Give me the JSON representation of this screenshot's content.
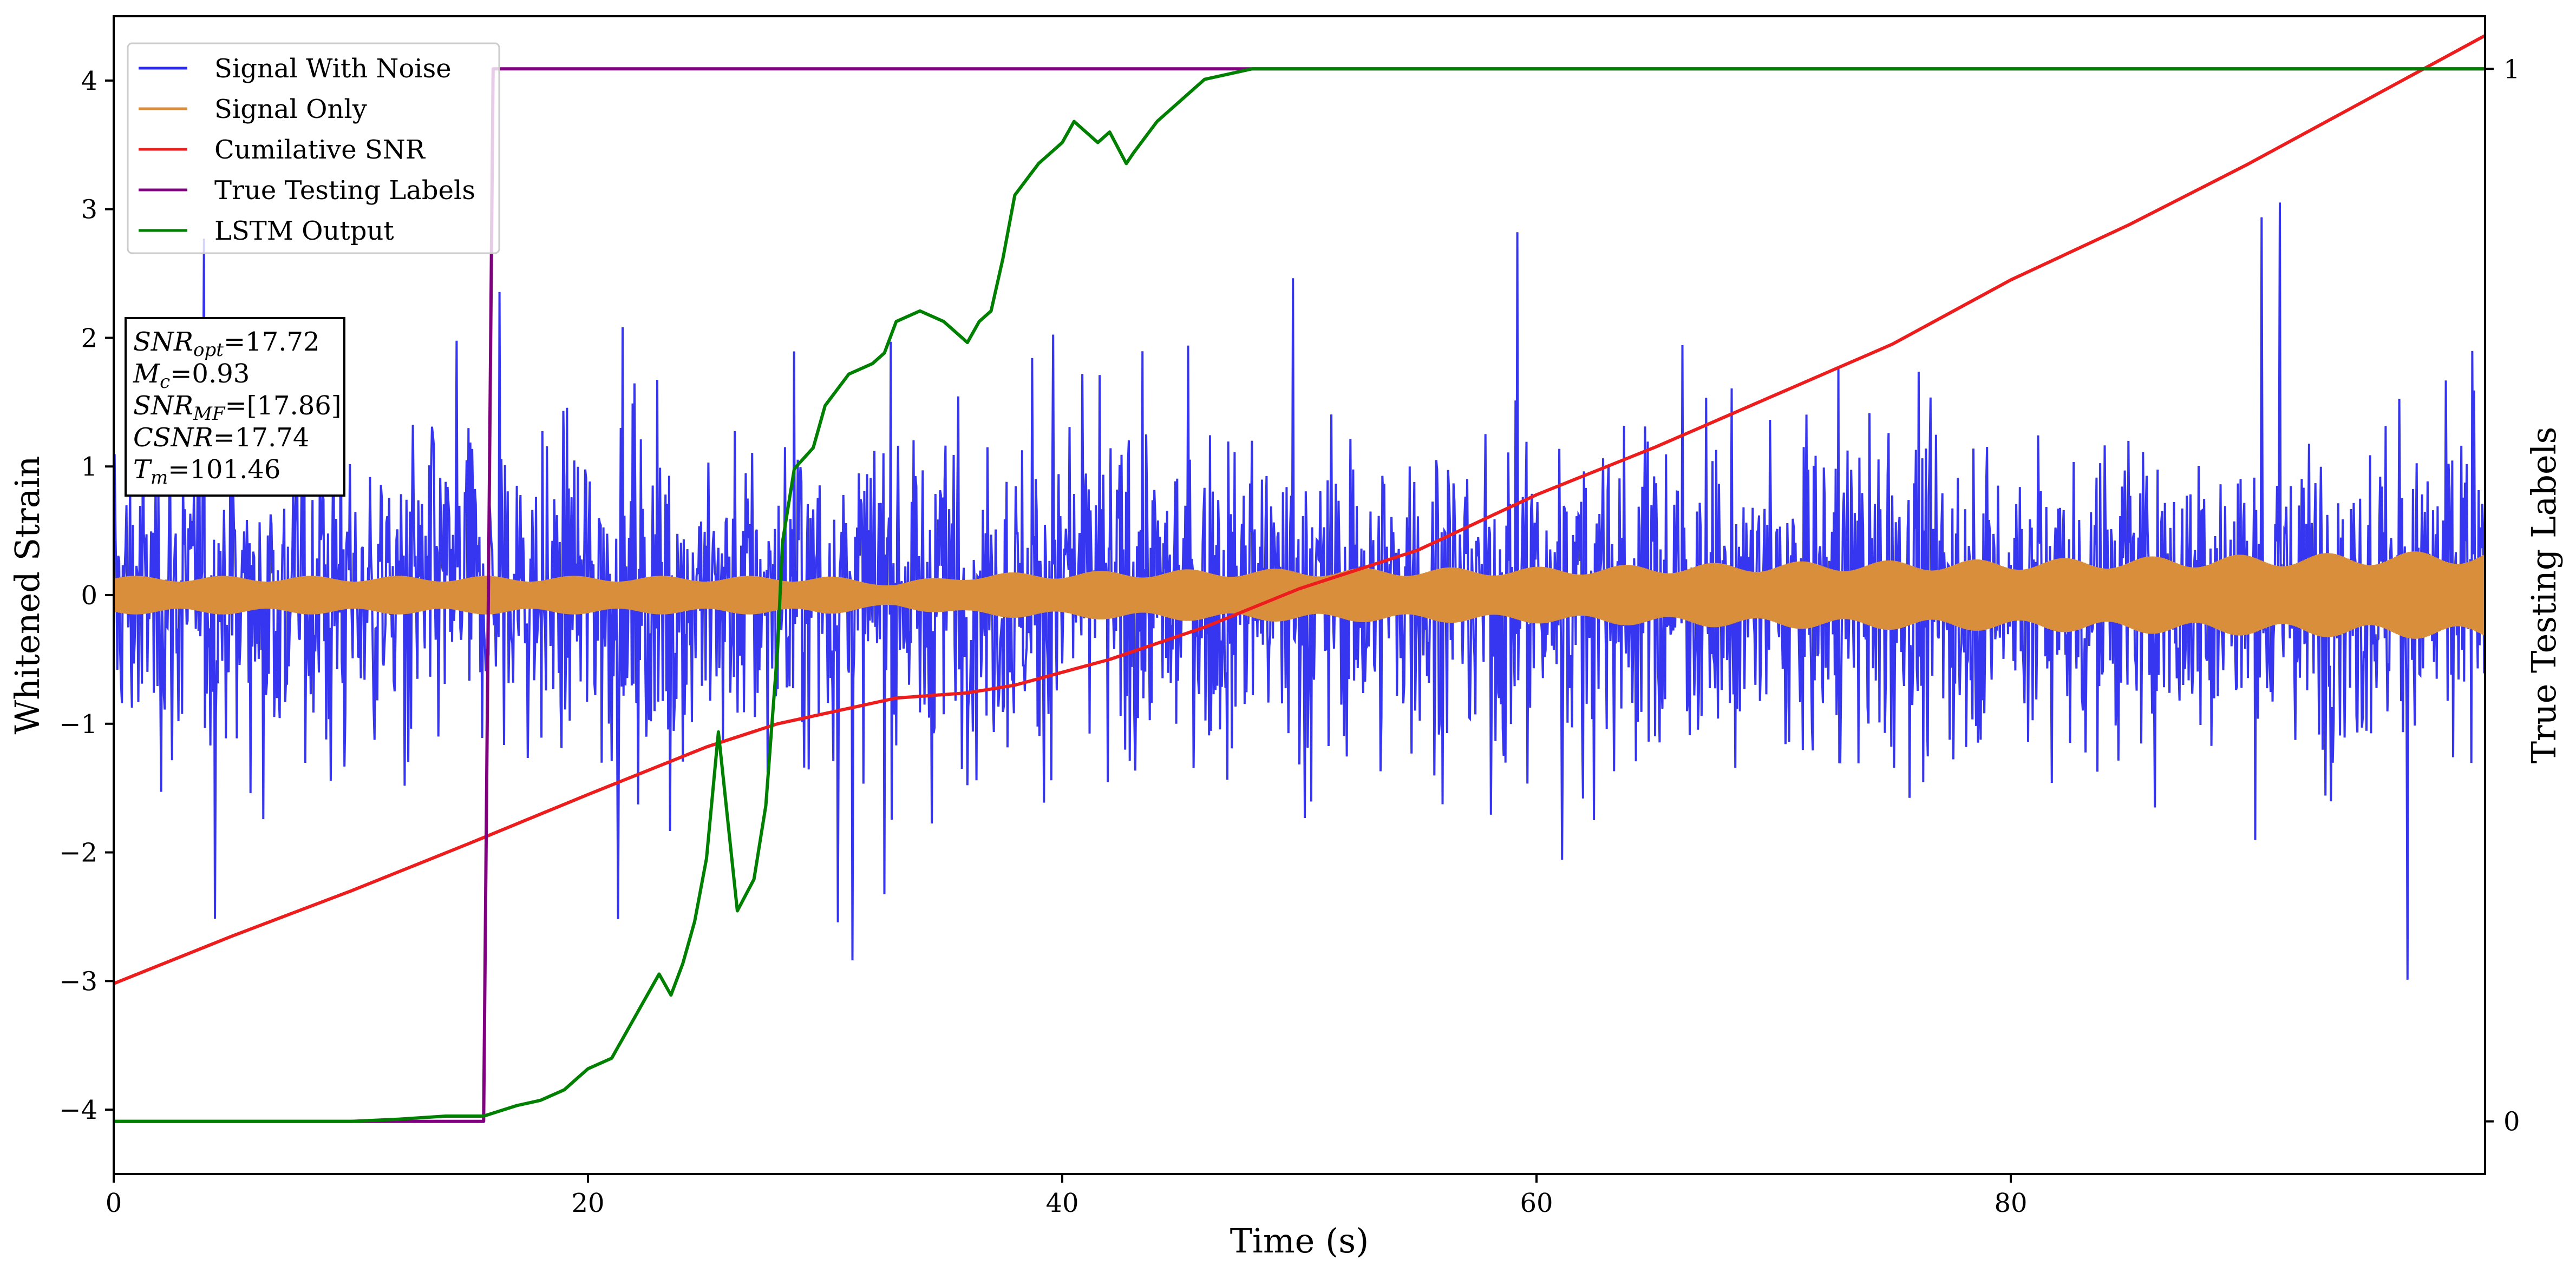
{
  "chart_data": {
    "type": "line",
    "xlabel": "Time (s)",
    "ylabel": "Whitened Strain",
    "y2label": "True Testing Labels",
    "xlim": [
      0,
      100
    ],
    "ylim": [
      -4.5,
      4.5
    ],
    "y2lim": [
      -0.05,
      1.05
    ],
    "xticks": [
      0,
      20,
      40,
      60,
      80
    ],
    "yticks": [
      -4,
      -3,
      -2,
      -1,
      0,
      1,
      2,
      3,
      4
    ],
    "y2ticks": [
      0,
      1
    ],
    "grid": false,
    "legend_position": "top-left",
    "colors": {
      "noise": "#2b2bf0",
      "signal": "#d88e3a",
      "csnr": "#ee1d1d",
      "labels": "#800080",
      "lstm": "#008000"
    },
    "series": [
      {
        "name": "Signal With Noise",
        "axis": "left",
        "description_of_values": "white-noise strain with envelope approx ±1.6, peaks to about ±4"
      },
      {
        "name": "Signal Only",
        "axis": "left",
        "envelope_x": [
          0,
          20,
          30,
          33,
          36,
          45,
          60,
          70,
          80,
          100
        ],
        "envelope_y": [
          0.15,
          0.15,
          0.15,
          0.1,
          0.17,
          0.2,
          0.22,
          0.26,
          0.28,
          0.35
        ]
      },
      {
        "name": "Cumilative SNR",
        "axis": "left",
        "x": [
          0,
          5,
          10,
          15,
          20,
          25,
          28,
          30,
          33,
          36,
          38,
          42,
          46,
          50,
          55,
          60,
          65,
          70,
          75,
          80,
          85,
          90,
          95,
          100
        ],
        "y": [
          -3.02,
          -2.65,
          -2.3,
          -1.93,
          -1.55,
          -1.18,
          -1.0,
          -0.92,
          -0.8,
          -0.76,
          -0.7,
          -0.5,
          -0.25,
          0.05,
          0.35,
          0.78,
          1.15,
          1.55,
          1.95,
          2.45,
          2.88,
          3.35,
          3.85,
          4.35
        ]
      },
      {
        "name": "True Testing Labels",
        "axis": "right",
        "x": [
          0,
          15.6,
          16.0,
          100
        ],
        "y": [
          0,
          0,
          1,
          1
        ]
      },
      {
        "name": "LSTM Output",
        "axis": "right",
        "x": [
          0,
          10,
          12,
          14,
          15.6,
          17,
          18,
          19,
          19.5,
          20,
          21,
          22,
          23,
          23.5,
          24,
          24.5,
          25,
          25.5,
          26.3,
          27,
          27.5,
          28,
          28.2,
          28.7,
          29.5,
          30,
          31,
          32,
          32.5,
          33,
          34,
          35,
          36,
          36.5,
          37,
          37.5,
          38,
          39,
          40,
          40.5,
          41,
          41.5,
          42,
          42.7,
          43,
          44,
          45,
          46,
          48,
          50,
          100
        ],
        "y": [
          0,
          0,
          0.002,
          0.005,
          0.005,
          0.015,
          0.02,
          0.03,
          0.04,
          0.05,
          0.06,
          0.1,
          0.14,
          0.12,
          0.15,
          0.19,
          0.25,
          0.37,
          0.2,
          0.23,
          0.3,
          0.45,
          0.55,
          0.62,
          0.64,
          0.68,
          0.71,
          0.72,
          0.73,
          0.76,
          0.77,
          0.76,
          0.74,
          0.76,
          0.77,
          0.82,
          0.88,
          0.91,
          0.93,
          0.95,
          0.94,
          0.93,
          0.94,
          0.91,
          0.92,
          0.95,
          0.97,
          0.99,
          1.0,
          1.0,
          1.0
        ]
      }
    ],
    "annotation": {
      "lines": [
        {
          "base": "SNR",
          "sub": "opt",
          "value": "=17.72"
        },
        {
          "base": "M",
          "sub": "c",
          "value": "=0.93"
        },
        {
          "base": "SNR",
          "sub": "MF",
          "value": "=[17.86]"
        },
        {
          "base": "CSNR",
          "sub": "",
          "value": "=17.74"
        },
        {
          "base": "T",
          "sub": "m",
          "value": "=101.46"
        }
      ]
    }
  }
}
